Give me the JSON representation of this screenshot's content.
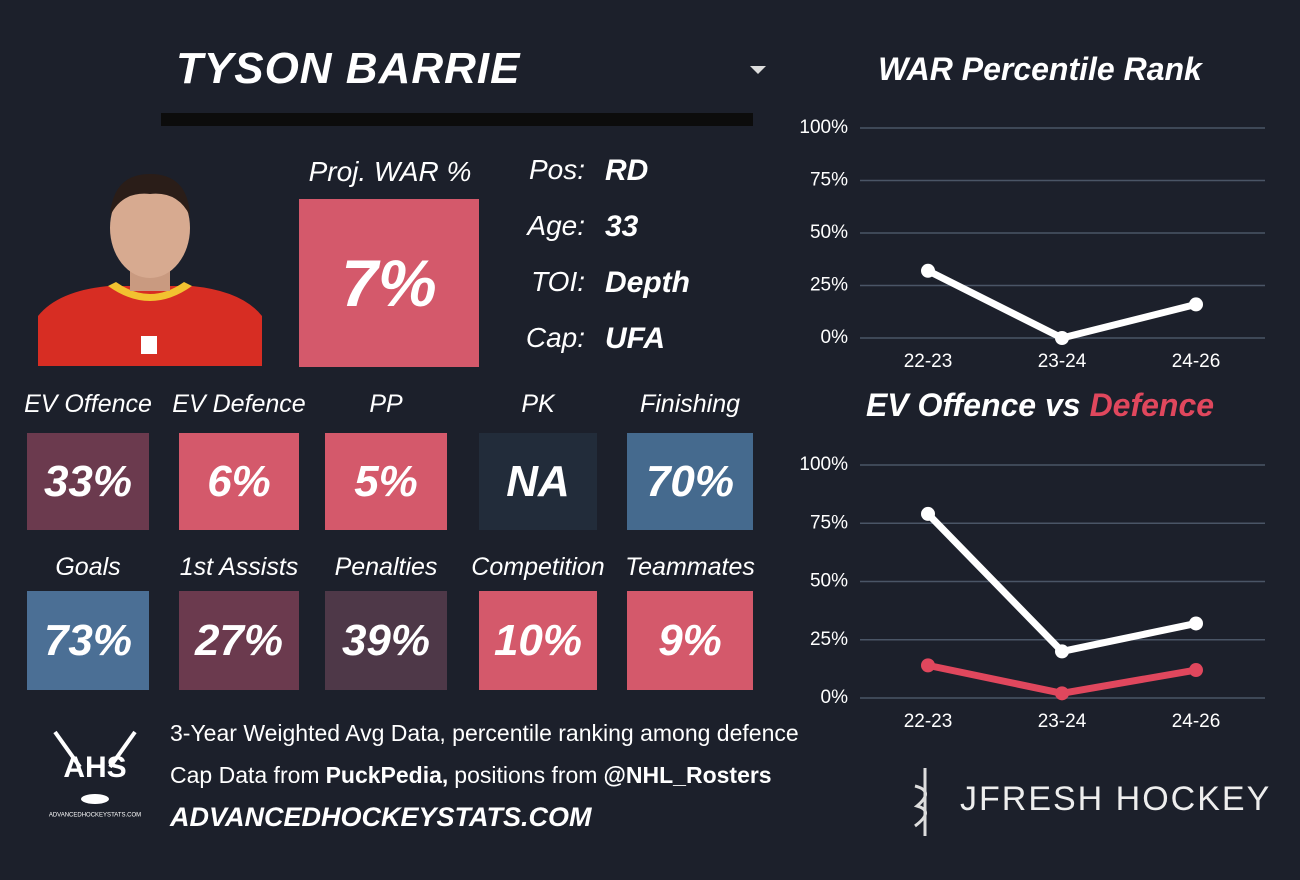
{
  "player": {
    "name": "TYSON BARRIE",
    "proj_label": "Proj. WAR %",
    "proj_value": "7%",
    "proj_color": "#d4596b",
    "info": [
      {
        "key": "Pos:",
        "value": "RD"
      },
      {
        "key": "Age:",
        "value": "33"
      },
      {
        "key": "TOI:",
        "value": "Depth"
      },
      {
        "key": "Cap:",
        "value": "UFA"
      }
    ]
  },
  "stats": {
    "rows": [
      [
        {
          "label": "EV Offence",
          "value": "33%",
          "color": "#6b3a4e"
        },
        {
          "label": "EV Defence",
          "value": "6%",
          "color": "#d4596b"
        },
        {
          "label": "PP",
          "value": "5%",
          "color": "#d4596b"
        },
        {
          "label": "PK",
          "value": "NA",
          "color": "#222c3a"
        },
        {
          "label": "Finishing",
          "value": "70%",
          "color": "#456a8e"
        }
      ],
      [
        {
          "label": "Goals",
          "value": "73%",
          "color": "#4b6f95"
        },
        {
          "label": "1st Assists",
          "value": "27%",
          "color": "#6b3a4e"
        },
        {
          "label": "Penalties",
          "value": "39%",
          "color": "#4e3848"
        },
        {
          "label": "Competition",
          "value": "10%",
          "color": "#d4596b"
        },
        {
          "label": "Teammates",
          "value": "9%",
          "color": "#d4596b"
        }
      ]
    ]
  },
  "footer": {
    "line1": "3-Year Weighted Avg Data, percentile ranking among defence",
    "line2": [
      "Cap Data from",
      "PuckPedia,",
      "positions from",
      "@NHL_Rosters"
    ],
    "website": "ADVANCEDHOCKEYSTATS.COM",
    "logo_text": "AHS",
    "logo_subtext": "ADVANCEDHOCKEYSTATS.COM",
    "brand": "JFRESH HOCKEY"
  },
  "chart_data": [
    {
      "type": "line",
      "title": "WAR Percentile Rank",
      "categories": [
        "22-23",
        "23-24",
        "24-26"
      ],
      "series": [
        {
          "color": "#ffffff",
          "values": [
            32,
            0,
            16
          ]
        }
      ],
      "ylim": [
        0,
        100
      ],
      "yticks": [
        {
          "value": 0,
          "label": "0%"
        },
        {
          "value": 25,
          "label": "25%"
        },
        {
          "value": 50,
          "label": "50%"
        },
        {
          "value": 75,
          "label": "75%"
        },
        {
          "value": 100,
          "label": "100%"
        }
      ],
      "grid": true
    },
    {
      "type": "line",
      "title": "EV Offence vs",
      "title_highlight": "Defence",
      "title_highlight_color": "#e0475d",
      "categories": [
        "22-23",
        "23-24",
        "24-26"
      ],
      "series": [
        {
          "color": "#ffffff",
          "values": [
            79,
            20,
            32
          ]
        },
        {
          "color": "#e0475d",
          "values": [
            14,
            2,
            12
          ]
        }
      ],
      "ylim": [
        0,
        100
      ],
      "yticks": [
        {
          "value": 0,
          "label": "0%"
        },
        {
          "value": 25,
          "label": "25%"
        },
        {
          "value": 50,
          "label": "50%"
        },
        {
          "value": 75,
          "label": "75%"
        },
        {
          "value": 100,
          "label": "100%"
        }
      ],
      "grid": true
    }
  ]
}
